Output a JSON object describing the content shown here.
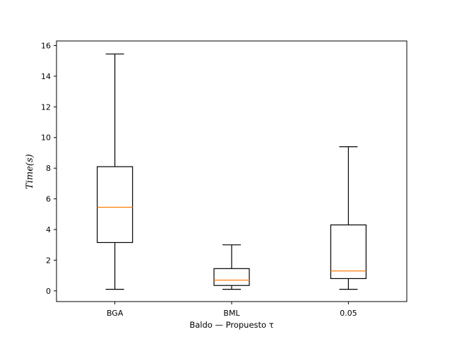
{
  "chart_data": {
    "type": "box",
    "categories": [
      "BGA",
      "BML",
      "0.05"
    ],
    "boxes": [
      {
        "category": "BGA",
        "whisker_low": 0.1,
        "q1": 3.15,
        "median": 5.45,
        "q3": 8.1,
        "whisker_high": 15.45
      },
      {
        "category": "BML",
        "whisker_low": 0.1,
        "q1": 0.35,
        "median": 0.7,
        "q3": 1.45,
        "whisker_high": 3.0
      },
      {
        "category": "0.05",
        "whisker_low": 0.1,
        "q1": 0.8,
        "median": 1.3,
        "q3": 4.3,
        "whisker_high": 9.4
      }
    ],
    "xlabel": "Baldo — Propuesto τ",
    "ylabel": "Time(s)",
    "ylim": [
      -0.7,
      16.3
    ],
    "yticks": [
      "0",
      "2",
      "4",
      "6",
      "8",
      "10",
      "12",
      "14",
      "16"
    ],
    "grid": false,
    "colors": {
      "box": "#000000",
      "median": "#ff7f0e",
      "background": "#ffffff"
    }
  }
}
